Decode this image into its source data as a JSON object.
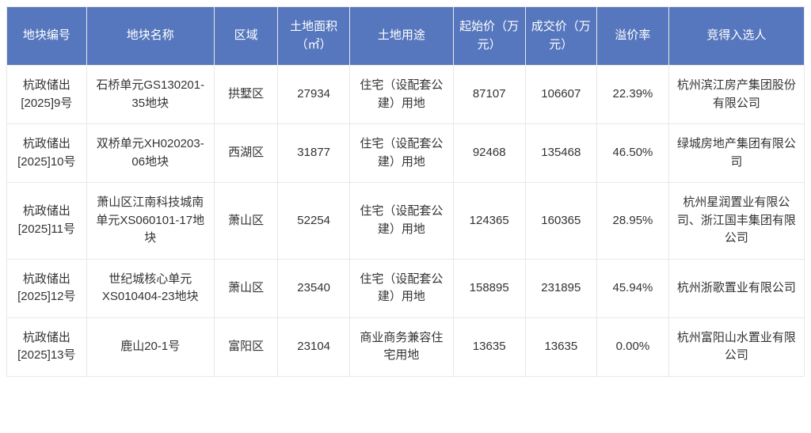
{
  "table": {
    "header_bg": "#5677bd",
    "header_fg": "#ffffff",
    "border_color": "#e8e8e8",
    "cell_fg": "#333333",
    "font_size": 15,
    "columns": [
      {
        "label": "地块编号",
        "width_pct": 10
      },
      {
        "label": "地块名称",
        "width_pct": 16
      },
      {
        "label": "区域",
        "width_pct": 8
      },
      {
        "label": "土地面积（㎡）",
        "width_pct": 9
      },
      {
        "label": "土地用途",
        "width_pct": 13
      },
      {
        "label": "起始价（万元）",
        "width_pct": 9
      },
      {
        "label": "成交价（万元）",
        "width_pct": 9
      },
      {
        "label": "溢价率",
        "width_pct": 9
      },
      {
        "label": "竞得入选人",
        "width_pct": 17
      }
    ],
    "rows": [
      [
        "杭政储出[2025]9号",
        "石桥单元GS130201-35地块",
        "拱墅区",
        "27934",
        "住宅（设配套公建）用地",
        "87107",
        "106607",
        "22.39%",
        "杭州滨江房产集团股份有限公司"
      ],
      [
        "杭政储出[2025]10号",
        "双桥单元XH020203-06地块",
        "西湖区",
        "31877",
        "住宅（设配套公建）用地",
        "92468",
        "135468",
        "46.50%",
        "绿城房地产集团有限公司"
      ],
      [
        "杭政储出[2025]11号",
        "萧山区江南科技城南单元XS060101-17地块",
        "萧山区",
        "52254",
        "住宅（设配套公建）用地",
        "124365",
        "160365",
        "28.95%",
        "杭州星润置业有限公司、浙江国丰集团有限公司"
      ],
      [
        "杭政储出[2025]12号",
        "世纪城核心单元XS010404-23地块",
        "萧山区",
        "23540",
        "住宅（设配套公建）用地",
        "158895",
        "231895",
        "45.94%",
        "杭州浙歌置业有限公司"
      ],
      [
        "杭政储出[2025]13号",
        "鹿山20-1号",
        "富阳区",
        "23104",
        "商业商务兼容住宅用地",
        "13635",
        "13635",
        "0.00%",
        "杭州富阳山水置业有限公司"
      ]
    ]
  }
}
